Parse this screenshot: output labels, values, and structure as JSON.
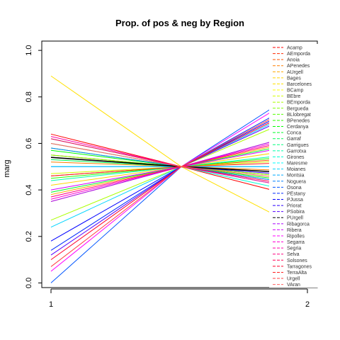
{
  "chart_data": {
    "type": "line",
    "title": "Prop. of pos & neg by Region",
    "ylabel": "marg",
    "xlabel": "",
    "x_ticks": [
      "1",
      "2"
    ],
    "y_ticks": [
      "0.0",
      "0.2",
      "0.4",
      "0.6",
      "0.8",
      "1.0"
    ],
    "ylim": [
      -0.02,
      1.04
    ],
    "crossing_value": 0.5,
    "legend_position": "right",
    "series": [
      {
        "name": "Acamp",
        "color": "#ff0000",
        "values": [
          0.64,
          0.36
        ]
      },
      {
        "name": "AEmporda",
        "color": "#ff2a00",
        "values": [
          0.55,
          0.45
        ]
      },
      {
        "name": "Anoia",
        "color": "#ff5500",
        "values": [
          0.46,
          0.54
        ]
      },
      {
        "name": "APenedes",
        "color": "#ff7f00",
        "values": [
          0.52,
          0.48
        ]
      },
      {
        "name": "AUrgell",
        "color": "#ffaa00",
        "values": [
          0.38,
          0.62
        ]
      },
      {
        "name": "Bages",
        "color": "#ffd400",
        "values": [
          0.42,
          0.58
        ]
      },
      {
        "name": "Barcelones",
        "color": "#ffe000",
        "values": [
          0.89,
          0.22
        ]
      },
      {
        "name": "BCamp",
        "color": "#ffff00",
        "values": [
          0.35,
          0.65
        ]
      },
      {
        "name": "BEbre",
        "color": "#d4ff00",
        "values": [
          0.47,
          0.53
        ]
      },
      {
        "name": "BEmporda",
        "color": "#aaff00",
        "values": [
          0.27,
          0.73
        ]
      },
      {
        "name": "Bergueda",
        "color": "#7fff00",
        "values": [
          0.55,
          0.45
        ]
      },
      {
        "name": "BLlobregat",
        "color": "#55ff00",
        "values": [
          0.58,
          0.42
        ]
      },
      {
        "name": "BPenedes",
        "color": "#2aff00",
        "values": [
          0.45,
          0.55
        ]
      },
      {
        "name": "Cerdanya",
        "color": "#00ff00",
        "values": [
          0.57,
          0.43
        ]
      },
      {
        "name": "Conca",
        "color": "#00ff2a",
        "values": [
          0.39,
          0.61
        ]
      },
      {
        "name": "Garraf",
        "color": "#00ff55",
        "values": [
          0.53,
          0.47
        ]
      },
      {
        "name": "Garrigues",
        "color": "#00ff7f",
        "values": [
          0.6,
          0.4
        ]
      },
      {
        "name": "Garrotxa",
        "color": "#00ffaa",
        "values": [
          0.44,
          0.56
        ]
      },
      {
        "name": "Girones",
        "color": "#00ffd4",
        "values": [
          0.62,
          0.38
        ]
      },
      {
        "name": "Maresme",
        "color": "#00ffff",
        "values": [
          0.5,
          0.5
        ]
      },
      {
        "name": "Moianes",
        "color": "#00d4ff",
        "values": [
          0.24,
          0.76
        ]
      },
      {
        "name": "Montsia",
        "color": "#00aaff",
        "values": [
          0.5,
          0.5
        ]
      },
      {
        "name": "Noguera",
        "color": "#0080ff",
        "values": [
          0.58,
          0.42
        ]
      },
      {
        "name": "Osona",
        "color": "#0055ff",
        "values": [
          0.0,
          0.85
        ]
      },
      {
        "name": "PEstany",
        "color": "#002aff",
        "values": [
          0.14,
          0.8
        ]
      },
      {
        "name": "PJussa",
        "color": "#0000ff",
        "values": [
          0.18,
          0.78
        ]
      },
      {
        "name": "Priorat",
        "color": "#2a00ff",
        "values": [
          0.54,
          0.46
        ]
      },
      {
        "name": "PSobira",
        "color": "#5500ff",
        "values": [
          0.12,
          0.75
        ]
      },
      {
        "name": "PUrgell",
        "color": "#000000",
        "values": [
          0.54,
          0.47
        ]
      },
      {
        "name": "Ribagorca",
        "color": "#aa00ff",
        "values": [
          0.35,
          0.65
        ]
      },
      {
        "name": "Ribera",
        "color": "#d400ff",
        "values": [
          0.4,
          0.6
        ]
      },
      {
        "name": "Ripolles",
        "color": "#ff00ff",
        "values": [
          0.05,
          0.83
        ]
      },
      {
        "name": "Segarra",
        "color": "#ff00d4",
        "values": [
          0.36,
          0.64
        ]
      },
      {
        "name": "Segria",
        "color": "#ff00aa",
        "values": [
          0.63,
          0.4
        ]
      },
      {
        "name": "Selva",
        "color": "#ff0080",
        "values": [
          0.37,
          0.63
        ]
      },
      {
        "name": "Solsones",
        "color": "#ff0055",
        "values": [
          0.62,
          0.41
        ]
      },
      {
        "name": "Tarragones",
        "color": "#ff002a",
        "values": [
          0.1,
          0.77
        ]
      },
      {
        "name": "TerraAlta",
        "color": "#ff2020",
        "values": [
          0.46,
          0.52
        ]
      },
      {
        "name": "Urgell",
        "color": "#ff4040",
        "values": [
          0.07,
          0.79
        ]
      },
      {
        "name": "VAran",
        "color": "#ff6060",
        "values": [
          0.6,
          0.44
        ]
      }
    ]
  }
}
